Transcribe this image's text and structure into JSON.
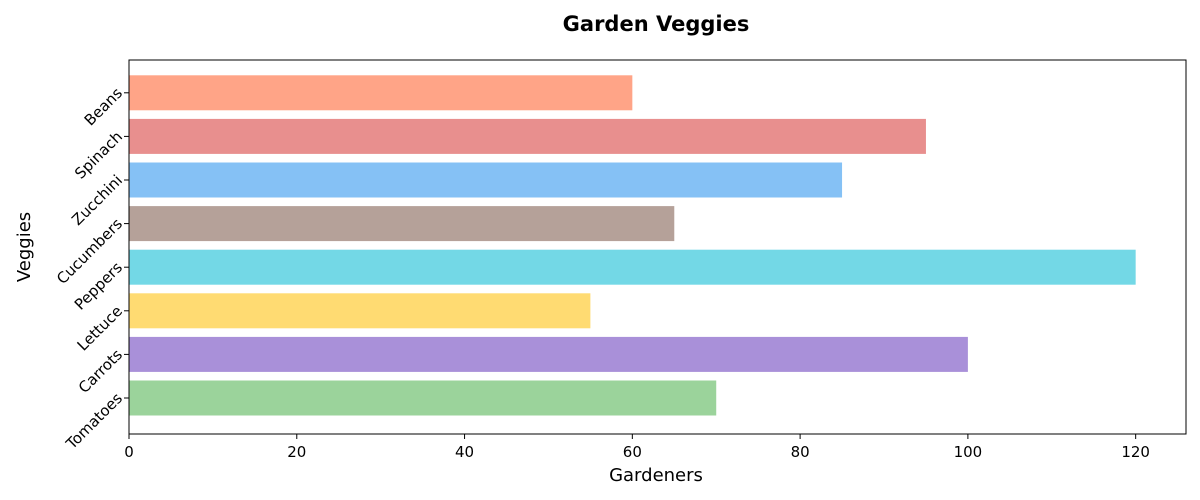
{
  "chart_data": {
    "type": "bar",
    "orientation": "horizontal",
    "title": "Garden Veggies",
    "xlabel": "Gardeners",
    "ylabel": "Veggies",
    "xlim": [
      0,
      126
    ],
    "x_ticks": [
      0,
      20,
      40,
      60,
      80,
      100,
      120
    ],
    "grid": false,
    "categories": [
      "Tomatoes",
      "Carrots",
      "Lettuce",
      "Peppers",
      "Cucumbers",
      "Zucchini",
      "Spinach",
      "Beans"
    ],
    "values": [
      70,
      100,
      55,
      120,
      65,
      85,
      95,
      60
    ],
    "colors": [
      "#9bd39b",
      "#a990d9",
      "#ffdb72",
      "#73d8e6",
      "#b5a199",
      "#85c1f5",
      "#e88f8e",
      "#ffa487"
    ]
  }
}
